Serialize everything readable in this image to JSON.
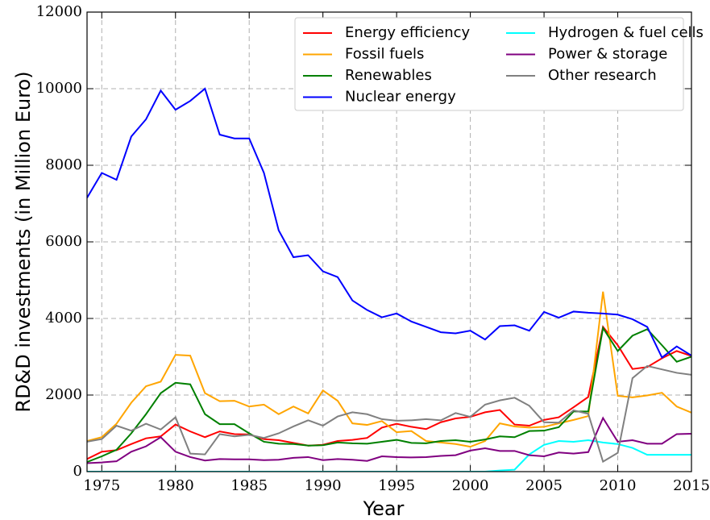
{
  "chart_data": {
    "type": "line",
    "xlabel": "Year",
    "ylabel": "RD&D investments (in Million Euro)",
    "x": [
      1974,
      1975,
      1976,
      1977,
      1978,
      1979,
      1980,
      1981,
      1982,
      1983,
      1984,
      1985,
      1986,
      1987,
      1988,
      1989,
      1990,
      1991,
      1992,
      1993,
      1994,
      1995,
      1996,
      1997,
      1998,
      1999,
      2000,
      2001,
      2002,
      2003,
      2004,
      2005,
      2006,
      2007,
      2008,
      2009,
      2010,
      2011,
      2012,
      2013,
      2014,
      2015
    ],
    "xlim": [
      1974,
      2015
    ],
    "xticks": [
      1975,
      1980,
      1985,
      1990,
      1995,
      2000,
      2005,
      2010,
      2015
    ],
    "ylim": [
      0,
      12000
    ],
    "yticks": [
      0,
      2000,
      4000,
      6000,
      8000,
      10000,
      12000
    ],
    "grid": true,
    "legend": "upper right",
    "series": [
      {
        "name": "Energy efficiency",
        "color": "#ff0000",
        "values": [
          330,
          520,
          560,
          720,
          870,
          920,
          1230,
          1050,
          900,
          1050,
          980,
          970,
          850,
          820,
          750,
          680,
          700,
          800,
          830,
          880,
          1150,
          1250,
          1170,
          1110,
          1290,
          1390,
          1430,
          1550,
          1610,
          1230,
          1200,
          1350,
          1420,
          1680,
          1950,
          3780,
          3300,
          2680,
          2730,
          2960,
          3150,
          3020
        ]
      },
      {
        "name": "Fossil fuels",
        "color": "#ffa500",
        "values": [
          800,
          900,
          1250,
          1800,
          2230,
          2350,
          3050,
          3030,
          2050,
          1840,
          1850,
          1700,
          1750,
          1500,
          1700,
          1520,
          2120,
          1850,
          1260,
          1220,
          1320,
          1030,
          1060,
          800,
          760,
          720,
          650,
          800,
          1260,
          1180,
          1150,
          1170,
          1260,
          1350,
          1450,
          4700,
          1980,
          1940,
          1990,
          2060,
          1700,
          1540
        ]
      },
      {
        "name": "Renewables",
        "color": "#008000",
        "values": [
          250,
          400,
          570,
          1000,
          1500,
          2050,
          2320,
          2280,
          1500,
          1240,
          1240,
          1000,
          780,
          730,
          720,
          680,
          690,
          760,
          740,
          730,
          780,
          830,
          750,
          740,
          800,
          820,
          780,
          840,
          920,
          900,
          1060,
          1070,
          1160,
          1570,
          1570,
          3750,
          3150,
          3550,
          3720,
          3300,
          2870,
          3000
        ]
      },
      {
        "name": "Nuclear energy",
        "color": "#0000ff",
        "values": [
          7150,
          7800,
          7620,
          8750,
          9200,
          9950,
          9450,
          9680,
          10000,
          8800,
          8700,
          8700,
          7800,
          6300,
          5600,
          5650,
          5230,
          5080,
          4470,
          4220,
          4030,
          4130,
          3920,
          3780,
          3640,
          3610,
          3680,
          3450,
          3800,
          3820,
          3680,
          4170,
          4020,
          4180,
          4150,
          4130,
          4100,
          3980,
          3780,
          2980,
          3270,
          3030
        ]
      },
      {
        "name": "Hydrogen & fuel cells",
        "color": "#00ffff",
        "values": [
          0,
          0,
          0,
          0,
          0,
          0,
          0,
          0,
          0,
          0,
          0,
          0,
          0,
          0,
          0,
          0,
          0,
          0,
          0,
          0,
          0,
          0,
          0,
          0,
          0,
          0,
          0,
          0,
          30,
          50,
          450,
          700,
          800,
          780,
          820,
          760,
          720,
          620,
          440,
          440,
          440,
          440
        ]
      },
      {
        "name": "Power & storage",
        "color": "#800080",
        "values": [
          220,
          240,
          270,
          520,
          660,
          900,
          520,
          380,
          290,
          330,
          320,
          320,
          300,
          310,
          360,
          380,
          300,
          330,
          310,
          280,
          400,
          380,
          370,
          380,
          410,
          430,
          550,
          610,
          540,
          540,
          430,
          400,
          500,
          470,
          510,
          1400,
          780,
          820,
          730,
          730,
          980,
          990
        ]
      },
      {
        "name": "Other research",
        "color": "#808080",
        "values": [
          780,
          850,
          1200,
          1070,
          1250,
          1100,
          1420,
          470,
          450,
          980,
          920,
          960,
          880,
          1000,
          1180,
          1340,
          1200,
          1440,
          1550,
          1500,
          1370,
          1330,
          1340,
          1370,
          1340,
          1530,
          1430,
          1750,
          1860,
          1930,
          1720,
          1290,
          1280,
          1600,
          1510,
          260,
          490,
          2440,
          2760,
          2670,
          2580,
          2530
        ]
      }
    ]
  }
}
